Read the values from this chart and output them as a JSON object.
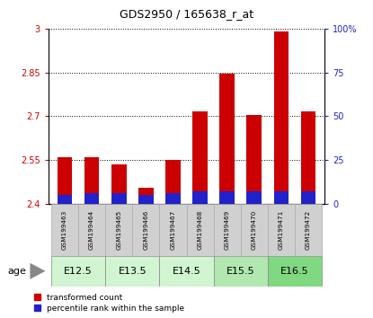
{
  "title": "GDS2950 / 165638_r_at",
  "samples": [
    "GSM199463",
    "GSM199464",
    "GSM199465",
    "GSM199466",
    "GSM199467",
    "GSM199468",
    "GSM199469",
    "GSM199470",
    "GSM199471",
    "GSM199472"
  ],
  "transformed_count": [
    2.56,
    2.56,
    2.535,
    2.455,
    2.55,
    2.715,
    2.845,
    2.705,
    2.99,
    2.715
  ],
  "percentile_rank_pct": [
    5,
    6,
    6,
    5,
    6,
    7,
    7,
    7,
    7,
    7
  ],
  "base_value": 2.4,
  "ylim_left": [
    2.4,
    3.0
  ],
  "ylim_right": [
    0,
    100
  ],
  "yticks_left": [
    2.4,
    2.55,
    2.7,
    2.85,
    3.0
  ],
  "ytick_labels_left": [
    "2.4",
    "2.55",
    "2.7",
    "2.85",
    "3"
  ],
  "yticks_right": [
    0,
    25,
    50,
    75,
    100
  ],
  "ytick_labels_right": [
    "0",
    "25",
    "50",
    "75",
    "100%"
  ],
  "age_groups": [
    {
      "label": "E12.5",
      "start": 0,
      "end": 1,
      "color": "#c8f0c8"
    },
    {
      "label": "E13.5",
      "start": 2,
      "end": 3,
      "color": "#c8f0c8"
    },
    {
      "label": "E14.5",
      "start": 4,
      "end": 5,
      "color": "#c8f0c8"
    },
    {
      "label": "E15.5",
      "start": 6,
      "end": 7,
      "color": "#a8e8a8"
    },
    {
      "label": "E16.5",
      "start": 8,
      "end": 9,
      "color": "#80d880"
    }
  ],
  "bar_color_red": "#cc0000",
  "bar_color_blue": "#2222cc",
  "bar_width": 0.55,
  "left_tick_color": "#cc0000",
  "right_tick_color": "#2222cc",
  "age_label": "age",
  "legend_red": "transformed count",
  "legend_blue": "percentile rank within the sample"
}
